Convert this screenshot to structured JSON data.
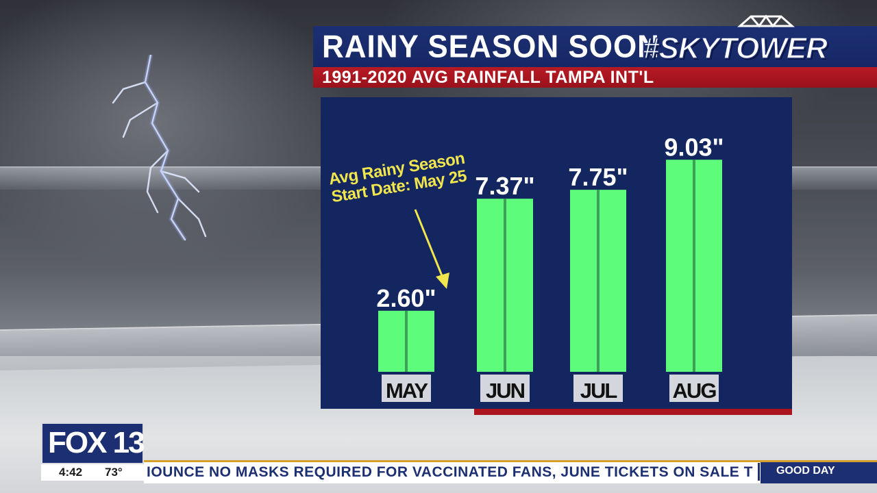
{
  "header": {
    "title": "RAINY SEASON SOON",
    "brand": "#SKYTOWER",
    "subtitle": "1991-2020 AVG RAINFALL TAMPA INT'L"
  },
  "annotation": {
    "line1": "Avg Rainy Season",
    "line2": "Start Date: May 25"
  },
  "colors": {
    "panel": "#14265f",
    "bar": "#5dfc7a",
    "bar_stripe": "#3ea058",
    "accent_red": "#a9141d",
    "annotation": "#f2e64e"
  },
  "chart_data": {
    "type": "bar",
    "categories": [
      "MAY",
      "JUN",
      "JUL",
      "AUG"
    ],
    "values": [
      2.6,
      7.37,
      7.75,
      9.03
    ],
    "value_labels": [
      "2.60\"",
      "7.37\"",
      "7.75\"",
      "9.03\""
    ],
    "ylim": [
      0,
      10
    ],
    "title": "RAINY SEASON SOON",
    "subtitle": "1991-2020 AVG RAINFALL TAMPA INT'L",
    "grid": false
  },
  "station": {
    "logo": "FOX 13",
    "time": "4:42",
    "temperature": "73°"
  },
  "ticker": {
    "text": "IOUNCE NO MASKS REQUIRED FOR VACCINATED FANS, JUNE TICKETS ON SALE T",
    "brand": "GOOD DAY"
  }
}
